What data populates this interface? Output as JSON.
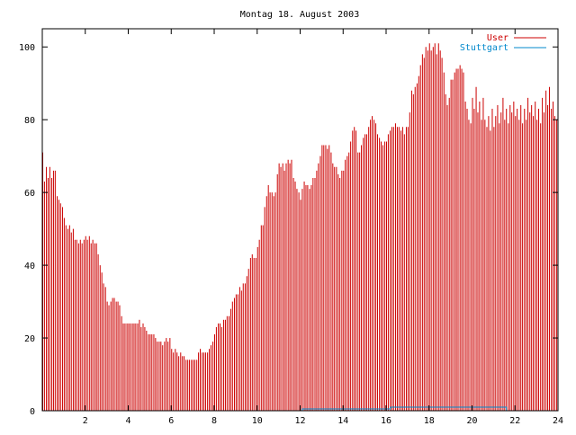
{
  "chart_data": {
    "type": "bar",
    "title": "Montag 18. August 2003",
    "xlabel": "",
    "ylabel": "",
    "xlim": [
      0,
      24
    ],
    "ylim": [
      0,
      105
    ],
    "x_ticks": [
      "2",
      "4",
      "6",
      "8",
      "10",
      "12",
      "14",
      "16",
      "18",
      "20",
      "22",
      "24"
    ],
    "y_ticks": [
      "0",
      "20",
      "40",
      "60",
      "80",
      "100"
    ],
    "legend_position": "top-right",
    "series": [
      {
        "name": "User",
        "color": "#cc0000",
        "style": "impulses",
        "points": [
          [
            0.0,
            71
          ],
          [
            0.08,
            63
          ],
          [
            0.17,
            67
          ],
          [
            0.25,
            64
          ],
          [
            0.33,
            67
          ],
          [
            0.42,
            64
          ],
          [
            0.5,
            66
          ],
          [
            0.58,
            66
          ],
          [
            0.67,
            59
          ],
          [
            0.75,
            58
          ],
          [
            0.83,
            57
          ],
          [
            0.92,
            56
          ],
          [
            1.0,
            53
          ],
          [
            1.08,
            51
          ],
          [
            1.17,
            50
          ],
          [
            1.25,
            51
          ],
          [
            1.33,
            49
          ],
          [
            1.42,
            50
          ],
          [
            1.5,
            47
          ],
          [
            1.58,
            47
          ],
          [
            1.67,
            46
          ],
          [
            1.75,
            47
          ],
          [
            1.83,
            46
          ],
          [
            1.92,
            47
          ],
          [
            2.0,
            48
          ],
          [
            2.08,
            47
          ],
          [
            2.17,
            48
          ],
          [
            2.25,
            46
          ],
          [
            2.33,
            47
          ],
          [
            2.42,
            46
          ],
          [
            2.5,
            46
          ],
          [
            2.58,
            43
          ],
          [
            2.67,
            40
          ],
          [
            2.75,
            38
          ],
          [
            2.83,
            35
          ],
          [
            2.92,
            34
          ],
          [
            3.0,
            30
          ],
          [
            3.08,
            29
          ],
          [
            3.17,
            30
          ],
          [
            3.25,
            31
          ],
          [
            3.33,
            31
          ],
          [
            3.42,
            30
          ],
          [
            3.5,
            30
          ],
          [
            3.58,
            29
          ],
          [
            3.67,
            26
          ],
          [
            3.75,
            24
          ],
          [
            3.83,
            24
          ],
          [
            3.92,
            24
          ],
          [
            4.0,
            24
          ],
          [
            4.08,
            24
          ],
          [
            4.17,
            24
          ],
          [
            4.25,
            24
          ],
          [
            4.33,
            24
          ],
          [
            4.42,
            24
          ],
          [
            4.5,
            25
          ],
          [
            4.58,
            23
          ],
          [
            4.67,
            24
          ],
          [
            4.75,
            23
          ],
          [
            4.83,
            22
          ],
          [
            4.92,
            21
          ],
          [
            5.0,
            21
          ],
          [
            5.08,
            21
          ],
          [
            5.17,
            21
          ],
          [
            5.25,
            20
          ],
          [
            5.33,
            19
          ],
          [
            5.42,
            19
          ],
          [
            5.5,
            19
          ],
          [
            5.58,
            18
          ],
          [
            5.67,
            19
          ],
          [
            5.75,
            20
          ],
          [
            5.83,
            19
          ],
          [
            5.92,
            20
          ],
          [
            6.0,
            17
          ],
          [
            6.08,
            16
          ],
          [
            6.17,
            17
          ],
          [
            6.25,
            16
          ],
          [
            6.33,
            15
          ],
          [
            6.42,
            16
          ],
          [
            6.5,
            15
          ],
          [
            6.58,
            15
          ],
          [
            6.67,
            14
          ],
          [
            6.75,
            14
          ],
          [
            6.83,
            14
          ],
          [
            6.92,
            14
          ],
          [
            7.0,
            14
          ],
          [
            7.08,
            14
          ],
          [
            7.17,
            14
          ],
          [
            7.25,
            16
          ],
          [
            7.33,
            17
          ],
          [
            7.42,
            16
          ],
          [
            7.5,
            16
          ],
          [
            7.58,
            16
          ],
          [
            7.67,
            16
          ],
          [
            7.75,
            17
          ],
          [
            7.83,
            18
          ],
          [
            7.92,
            19
          ],
          [
            8.0,
            21
          ],
          [
            8.08,
            23
          ],
          [
            8.17,
            24
          ],
          [
            8.25,
            24
          ],
          [
            8.33,
            23
          ],
          [
            8.42,
            25
          ],
          [
            8.5,
            25
          ],
          [
            8.58,
            26
          ],
          [
            8.67,
            26
          ],
          [
            8.75,
            28
          ],
          [
            8.83,
            30
          ],
          [
            8.92,
            31
          ],
          [
            9.0,
            32
          ],
          [
            9.08,
            32
          ],
          [
            9.17,
            34
          ],
          [
            9.25,
            33
          ],
          [
            9.33,
            35
          ],
          [
            9.42,
            35
          ],
          [
            9.5,
            37
          ],
          [
            9.58,
            39
          ],
          [
            9.67,
            42
          ],
          [
            9.75,
            43
          ],
          [
            9.83,
            42
          ],
          [
            9.92,
            42
          ],
          [
            10.0,
            45
          ],
          [
            10.08,
            47
          ],
          [
            10.17,
            51
          ],
          [
            10.25,
            51
          ],
          [
            10.33,
            56
          ],
          [
            10.42,
            59
          ],
          [
            10.5,
            62
          ],
          [
            10.58,
            60
          ],
          [
            10.67,
            60
          ],
          [
            10.75,
            59
          ],
          [
            10.83,
            60
          ],
          [
            10.92,
            65
          ],
          [
            11.0,
            68
          ],
          [
            11.08,
            67
          ],
          [
            11.17,
            68
          ],
          [
            11.25,
            66
          ],
          [
            11.33,
            68
          ],
          [
            11.42,
            69
          ],
          [
            11.5,
            68
          ],
          [
            11.58,
            69
          ],
          [
            11.67,
            64
          ],
          [
            11.75,
            63
          ],
          [
            11.83,
            61
          ],
          [
            11.92,
            60
          ],
          [
            12.0,
            58
          ],
          [
            12.08,
            61
          ],
          [
            12.17,
            63
          ],
          [
            12.25,
            62
          ],
          [
            12.33,
            62
          ],
          [
            12.42,
            61
          ],
          [
            12.5,
            62
          ],
          [
            12.58,
            64
          ],
          [
            12.67,
            64
          ],
          [
            12.75,
            66
          ],
          [
            12.83,
            68
          ],
          [
            12.92,
            70
          ],
          [
            13.0,
            73
          ],
          [
            13.08,
            73
          ],
          [
            13.17,
            73
          ],
          [
            13.25,
            72
          ],
          [
            13.33,
            73
          ],
          [
            13.42,
            71
          ],
          [
            13.5,
            68
          ],
          [
            13.58,
            67
          ],
          [
            13.67,
            67
          ],
          [
            13.75,
            65
          ],
          [
            13.83,
            64
          ],
          [
            13.92,
            66
          ],
          [
            14.0,
            66
          ],
          [
            14.08,
            69
          ],
          [
            14.17,
            70
          ],
          [
            14.25,
            71
          ],
          [
            14.33,
            74
          ],
          [
            14.42,
            77
          ],
          [
            14.5,
            78
          ],
          [
            14.58,
            77
          ],
          [
            14.67,
            71
          ],
          [
            14.75,
            71
          ],
          [
            14.83,
            73
          ],
          [
            14.92,
            75
          ],
          [
            15.0,
            76
          ],
          [
            15.08,
            76
          ],
          [
            15.17,
            78
          ],
          [
            15.25,
            80
          ],
          [
            15.33,
            81
          ],
          [
            15.42,
            80
          ],
          [
            15.5,
            79
          ],
          [
            15.58,
            76
          ],
          [
            15.67,
            75
          ],
          [
            15.75,
            74
          ],
          [
            15.83,
            73
          ],
          [
            15.92,
            74
          ],
          [
            16.0,
            74
          ],
          [
            16.08,
            76
          ],
          [
            16.17,
            77
          ],
          [
            16.25,
            78
          ],
          [
            16.33,
            78
          ],
          [
            16.42,
            79
          ],
          [
            16.5,
            78
          ],
          [
            16.58,
            78
          ],
          [
            16.67,
            77
          ],
          [
            16.75,
            78
          ],
          [
            16.83,
            76
          ],
          [
            16.92,
            78
          ],
          [
            17.0,
            78
          ],
          [
            17.08,
            82
          ],
          [
            17.17,
            88
          ],
          [
            17.25,
            87
          ],
          [
            17.33,
            89
          ],
          [
            17.42,
            90
          ],
          [
            17.5,
            92
          ],
          [
            17.58,
            95
          ],
          [
            17.67,
            98
          ],
          [
            17.75,
            97
          ],
          [
            17.83,
            100
          ],
          [
            17.92,
            99
          ],
          [
            18.0,
            101
          ],
          [
            18.08,
            99
          ],
          [
            18.17,
            100
          ],
          [
            18.25,
            101
          ],
          [
            18.33,
            98
          ],
          [
            18.42,
            101
          ],
          [
            18.5,
            99
          ],
          [
            18.58,
            97
          ],
          [
            18.67,
            93
          ],
          [
            18.75,
            87
          ],
          [
            18.83,
            84
          ],
          [
            18.92,
            86
          ],
          [
            19.0,
            91
          ],
          [
            19.08,
            91
          ],
          [
            19.17,
            93
          ],
          [
            19.25,
            94
          ],
          [
            19.33,
            94
          ],
          [
            19.42,
            95
          ],
          [
            19.5,
            94
          ],
          [
            19.58,
            93
          ],
          [
            19.67,
            85
          ],
          [
            19.75,
            83
          ],
          [
            19.83,
            80
          ],
          [
            19.92,
            79
          ],
          [
            20.0,
            86
          ],
          [
            20.08,
            83
          ],
          [
            20.17,
            89
          ],
          [
            20.25,
            82
          ],
          [
            20.33,
            85
          ],
          [
            20.42,
            80
          ],
          [
            20.5,
            86
          ],
          [
            20.58,
            80
          ],
          [
            20.67,
            78
          ],
          [
            20.75,
            81
          ],
          [
            20.83,
            77
          ],
          [
            20.92,
            83
          ],
          [
            21.0,
            78
          ],
          [
            21.08,
            81
          ],
          [
            21.17,
            84
          ],
          [
            21.25,
            79
          ],
          [
            21.33,
            82
          ],
          [
            21.42,
            86
          ],
          [
            21.5,
            80
          ],
          [
            21.58,
            83
          ],
          [
            21.67,
            79
          ],
          [
            21.75,
            84
          ],
          [
            21.83,
            82
          ],
          [
            21.92,
            85
          ],
          [
            22.0,
            81
          ],
          [
            22.08,
            83
          ],
          [
            22.17,
            80
          ],
          [
            22.25,
            84
          ],
          [
            22.33,
            79
          ],
          [
            22.42,
            83
          ],
          [
            22.5,
            80
          ],
          [
            22.58,
            86
          ],
          [
            22.67,
            82
          ],
          [
            22.75,
            84
          ],
          [
            22.83,
            81
          ],
          [
            22.92,
            85
          ],
          [
            23.0,
            80
          ],
          [
            23.08,
            83
          ],
          [
            23.17,
            79
          ],
          [
            23.25,
            86
          ],
          [
            23.33,
            82
          ],
          [
            23.42,
            88
          ],
          [
            23.5,
            84
          ],
          [
            23.58,
            89
          ],
          [
            23.67,
            83
          ],
          [
            23.75,
            85
          ],
          [
            23.83,
            81
          ],
          [
            23.92,
            80
          ]
        ]
      },
      {
        "name": "Stuttgart",
        "color": "#0088cc",
        "style": "line",
        "points": [
          [
            0,
            0
          ],
          [
            12.1,
            0
          ],
          [
            12.1,
            0.5
          ],
          [
            16.2,
            0.5
          ],
          [
            16.2,
            1
          ],
          [
            21.6,
            1
          ],
          [
            21.6,
            0
          ],
          [
            24,
            0
          ]
        ]
      }
    ]
  }
}
